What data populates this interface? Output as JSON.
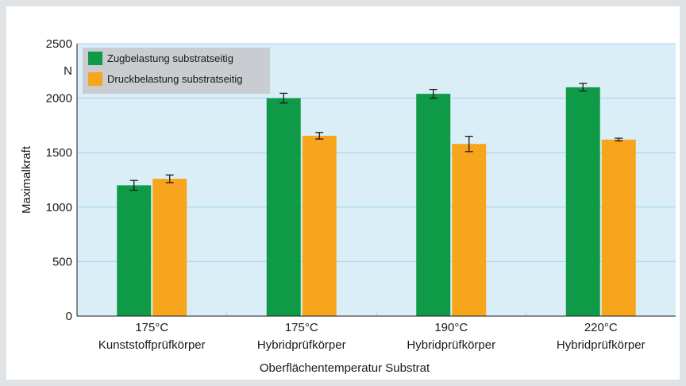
{
  "chart_data": {
    "type": "bar",
    "categories": [
      [
        "175°C",
        "Kunststoffprüfkörper"
      ],
      [
        "175°C",
        "Hybridprüfkörper"
      ],
      [
        "190°C",
        "Hybridprüfkörper"
      ],
      [
        "220°C",
        "Hybridprüfkörper"
      ]
    ],
    "series": [
      {
        "name": "Zugbelastung substratseitig",
        "color": "#0f9a48",
        "values": [
          1200,
          2000,
          2040,
          2100
        ],
        "error": [
          45,
          45,
          40,
          35
        ]
      },
      {
        "name": "Druckbelastung substratseitig",
        "color": "#f7a51c",
        "values": [
          1260,
          1655,
          1580,
          1620
        ],
        "error": [
          35,
          30,
          70,
          12
        ]
      }
    ],
    "xlabel": "Oberflächentemperatur Substrat",
    "ylabel": "Maximalkraft",
    "yunit": "N",
    "ylim": [
      0,
      2500
    ],
    "yticks": [
      0,
      500,
      1000,
      1500,
      2000,
      2500
    ],
    "grid": true,
    "legend_position": "top-left",
    "plot_background": "#daeef8",
    "grid_color": "#9ed3ec"
  }
}
